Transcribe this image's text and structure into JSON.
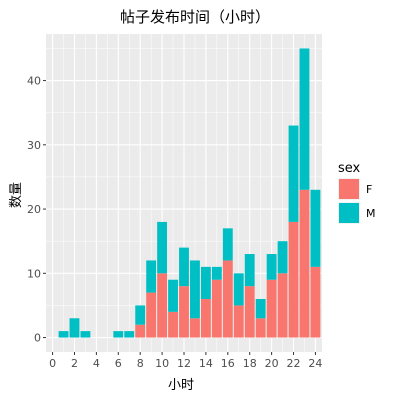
{
  "chart_data": {
    "type": "bar",
    "stacked": true,
    "title": "帖子发布时间（小时）",
    "xlabel": "小时",
    "ylabel": "数量",
    "x": [
      0,
      1,
      2,
      3,
      4,
      5,
      6,
      7,
      8,
      9,
      10,
      11,
      12,
      13,
      14,
      15,
      16,
      17,
      18,
      19,
      20,
      21,
      22,
      23,
      24
    ],
    "xticks": [
      0,
      2,
      4,
      6,
      8,
      10,
      12,
      14,
      16,
      18,
      20,
      22,
      24
    ],
    "yticks": [
      0,
      10,
      20,
      30,
      40
    ],
    "xlim": [
      -0.6,
      24.6
    ],
    "ylim": [
      -2.25,
      47.25
    ],
    "legend": {
      "title": "sex",
      "position": "right"
    },
    "series": [
      {
        "name": "F",
        "color": "#F8766D",
        "values": [
          0,
          0,
          0,
          0,
          0,
          0,
          0,
          0,
          2,
          7,
          10,
          4,
          8,
          3,
          6,
          9,
          12,
          5,
          8,
          3,
          9,
          10,
          18,
          23,
          11
        ]
      },
      {
        "name": "M",
        "color": "#00BFC4",
        "values": [
          0,
          1,
          3,
          1,
          0,
          0,
          1,
          1,
          3,
          5,
          8,
          5,
          6,
          9,
          5,
          2,
          5,
          5,
          5,
          3,
          4,
          5,
          15,
          22,
          12
        ]
      }
    ],
    "grid": true,
    "panel_background": "#EBEBEB",
    "grid_color": "#FFFFFF"
  }
}
